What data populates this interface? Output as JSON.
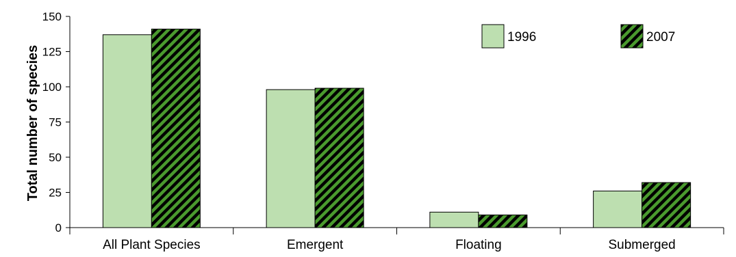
{
  "chart_data": {
    "type": "bar",
    "categories": [
      "All Plant Species",
      "Emergent",
      "Floating",
      "Submerged"
    ],
    "series": [
      {
        "name": "1996",
        "values": [
          137,
          98,
          11,
          26
        ],
        "color": "#bddfb0",
        "pattern": "solid"
      },
      {
        "name": "2007",
        "values": [
          141,
          99,
          9,
          32
        ],
        "color": "#4a9a2e",
        "pattern": "hatched"
      }
    ],
    "title": "",
    "xlabel": "",
    "ylabel": "Total number of species",
    "ylim": [
      0,
      150
    ],
    "yticks": [
      "0",
      "25",
      "50",
      "75",
      "100",
      "125",
      "150"
    ],
    "grid": false,
    "legend": "top-right"
  }
}
